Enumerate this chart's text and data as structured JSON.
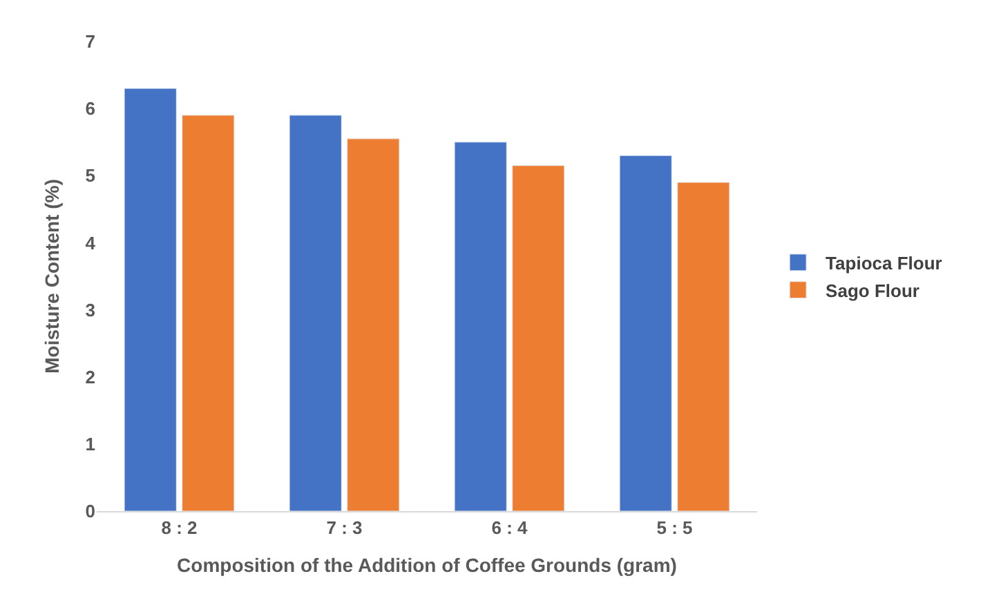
{
  "chart_data": {
    "type": "bar",
    "xlabel": "Composition of the Addition of Coffee Grounds (gram)",
    "ylabel": "Moisture Content (%)",
    "categories": [
      "8 : 2",
      "7 : 3",
      "6 : 4",
      "5 : 5"
    ],
    "series": [
      {
        "name": "Tapioca Flour",
        "color": "#4472c4",
        "values": [
          6.3,
          5.9,
          5.5,
          5.3
        ]
      },
      {
        "name": "Sago Flour",
        "color": "#ed7d31",
        "values": [
          5.9,
          5.55,
          5.15,
          4.9
        ]
      }
    ],
    "ylim": [
      0,
      7
    ],
    "yticks": [
      0,
      1,
      2,
      3,
      4,
      5,
      6,
      7
    ],
    "grid": false,
    "legend": "right"
  }
}
